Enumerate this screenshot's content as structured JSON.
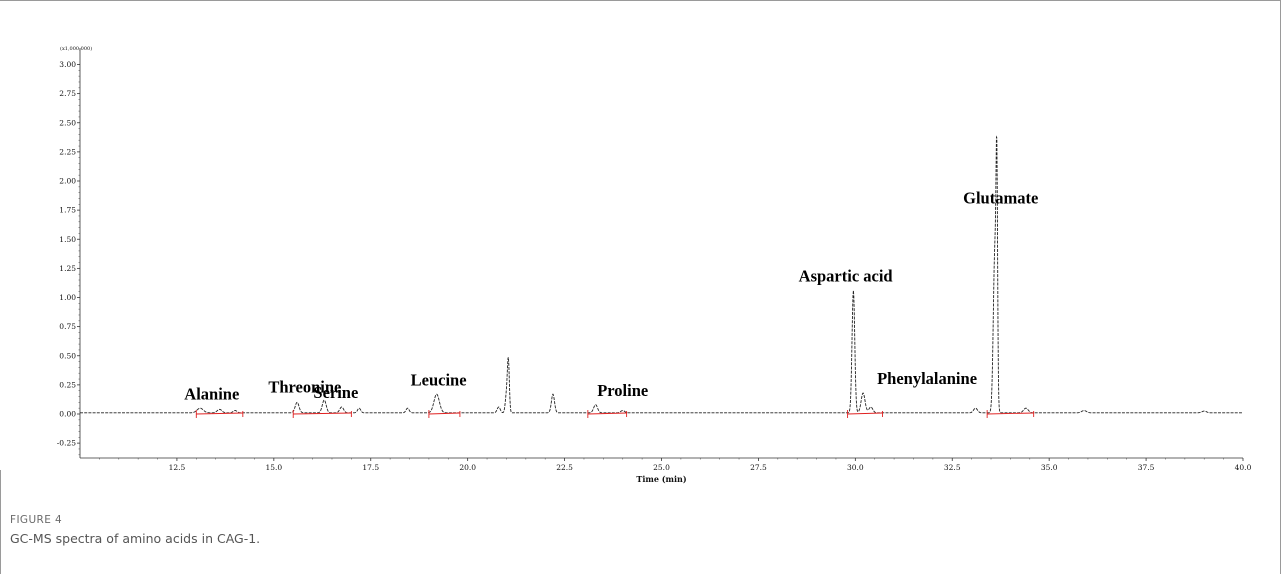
{
  "figure": {
    "label": "FIGURE 4",
    "caption": "GC-MS spectra of amino acids in CAG-1."
  },
  "chart_data": {
    "type": "line",
    "title": "",
    "xlabel": "Time (min)",
    "ylabel": "",
    "y_multiplier_label": "(x1,000,000)",
    "xlim": [
      10.0,
      40.0
    ],
    "ylim": [
      -0.3,
      3.05
    ],
    "x_ticks": [
      12.5,
      15.0,
      17.5,
      20.0,
      22.5,
      25.0,
      27.5,
      30.0,
      32.5,
      35.0,
      37.5,
      40.0
    ],
    "x_tick_labels": [
      "12.5",
      "15.0",
      "17.5",
      "20.0",
      "22.5",
      "25.0",
      "27.5",
      "30.0",
      "32.5",
      "35.0",
      "37.5",
      "40.0"
    ],
    "y_ticks": [
      3.0,
      2.75,
      2.5,
      2.25,
      2.0,
      1.75,
      1.5,
      1.25,
      1.0,
      0.75,
      0.5,
      0.25,
      0.0,
      -0.25
    ],
    "y_tick_labels": [
      "3.00",
      "2.75",
      "2.50",
      "2.25",
      "2.00",
      "1.75",
      "1.50",
      "1.25",
      "1.00",
      "0.75",
      "0.50",
      "0.25",
      "0.00",
      "-0.25"
    ],
    "grid": false,
    "baseline": 0.01,
    "series": [
      {
        "color": "#222222",
        "peaks": [
          {
            "x": 13.1,
            "y": 0.04,
            "w": 0.08
          },
          {
            "x": 13.6,
            "y": 0.03,
            "w": 0.06
          },
          {
            "x": 14.0,
            "y": 0.02,
            "w": 0.05
          },
          {
            "x": 15.6,
            "y": 0.09,
            "w": 0.05
          },
          {
            "x": 16.3,
            "y": 0.11,
            "w": 0.05
          },
          {
            "x": 16.75,
            "y": 0.05,
            "w": 0.05
          },
          {
            "x": 17.2,
            "y": 0.04,
            "w": 0.04
          },
          {
            "x": 18.45,
            "y": 0.04,
            "w": 0.04
          },
          {
            "x": 19.2,
            "y": 0.16,
            "w": 0.07
          },
          {
            "x": 20.8,
            "y": 0.05,
            "w": 0.04
          },
          {
            "x": 21.05,
            "y": 0.44,
            "w": 0.025
          },
          {
            "x": 21.0,
            "y": 0.15,
            "w": 0.03
          },
          {
            "x": 22.2,
            "y": 0.16,
            "w": 0.04
          },
          {
            "x": 23.3,
            "y": 0.07,
            "w": 0.05
          },
          {
            "x": 24.0,
            "y": 0.02,
            "w": 0.05
          },
          {
            "x": 29.95,
            "y": 1.05,
            "w": 0.035
          },
          {
            "x": 30.2,
            "y": 0.17,
            "w": 0.05
          },
          {
            "x": 30.4,
            "y": 0.05,
            "w": 0.05
          },
          {
            "x": 33.1,
            "y": 0.04,
            "w": 0.05
          },
          {
            "x": 33.6,
            "y": 1.4,
            "w": 0.04
          },
          {
            "x": 33.65,
            "y": 1.72,
            "w": 0.02
          },
          {
            "x": 34.4,
            "y": 0.04,
            "w": 0.06
          },
          {
            "x": 35.9,
            "y": 0.02,
            "w": 0.06
          },
          {
            "x": 39.0,
            "y": 0.015,
            "w": 0.06
          }
        ]
      },
      {
        "color": "#e02020",
        "segments": [
          {
            "x0": 13.0,
            "x1": 14.2
          },
          {
            "x0": 15.5,
            "x1": 17.0
          },
          {
            "x0": 19.0,
            "x1": 19.8
          },
          {
            "x0": 23.1,
            "x1": 24.1
          },
          {
            "x0": 29.8,
            "x1": 30.7
          },
          {
            "x0": 33.4,
            "x1": 34.6
          }
        ]
      }
    ],
    "annotations": [
      {
        "text": "Alanine",
        "x": 13.4,
        "y": 0.04
      },
      {
        "text": "Threonine",
        "x": 15.8,
        "y": 0.1
      },
      {
        "text": "Serine",
        "x": 16.6,
        "y": 0.05
      },
      {
        "text": "Leucine",
        "x": 19.25,
        "y": 0.16
      },
      {
        "text": "Proline",
        "x": 24.0,
        "y": 0.07
      },
      {
        "text": "Aspartic acid",
        "x": 29.75,
        "y": 1.05
      },
      {
        "text": "Phenylalanine",
        "x": 31.85,
        "y": 0.17
      },
      {
        "text": "Glutamate",
        "x": 33.75,
        "y": 1.72
      }
    ]
  }
}
